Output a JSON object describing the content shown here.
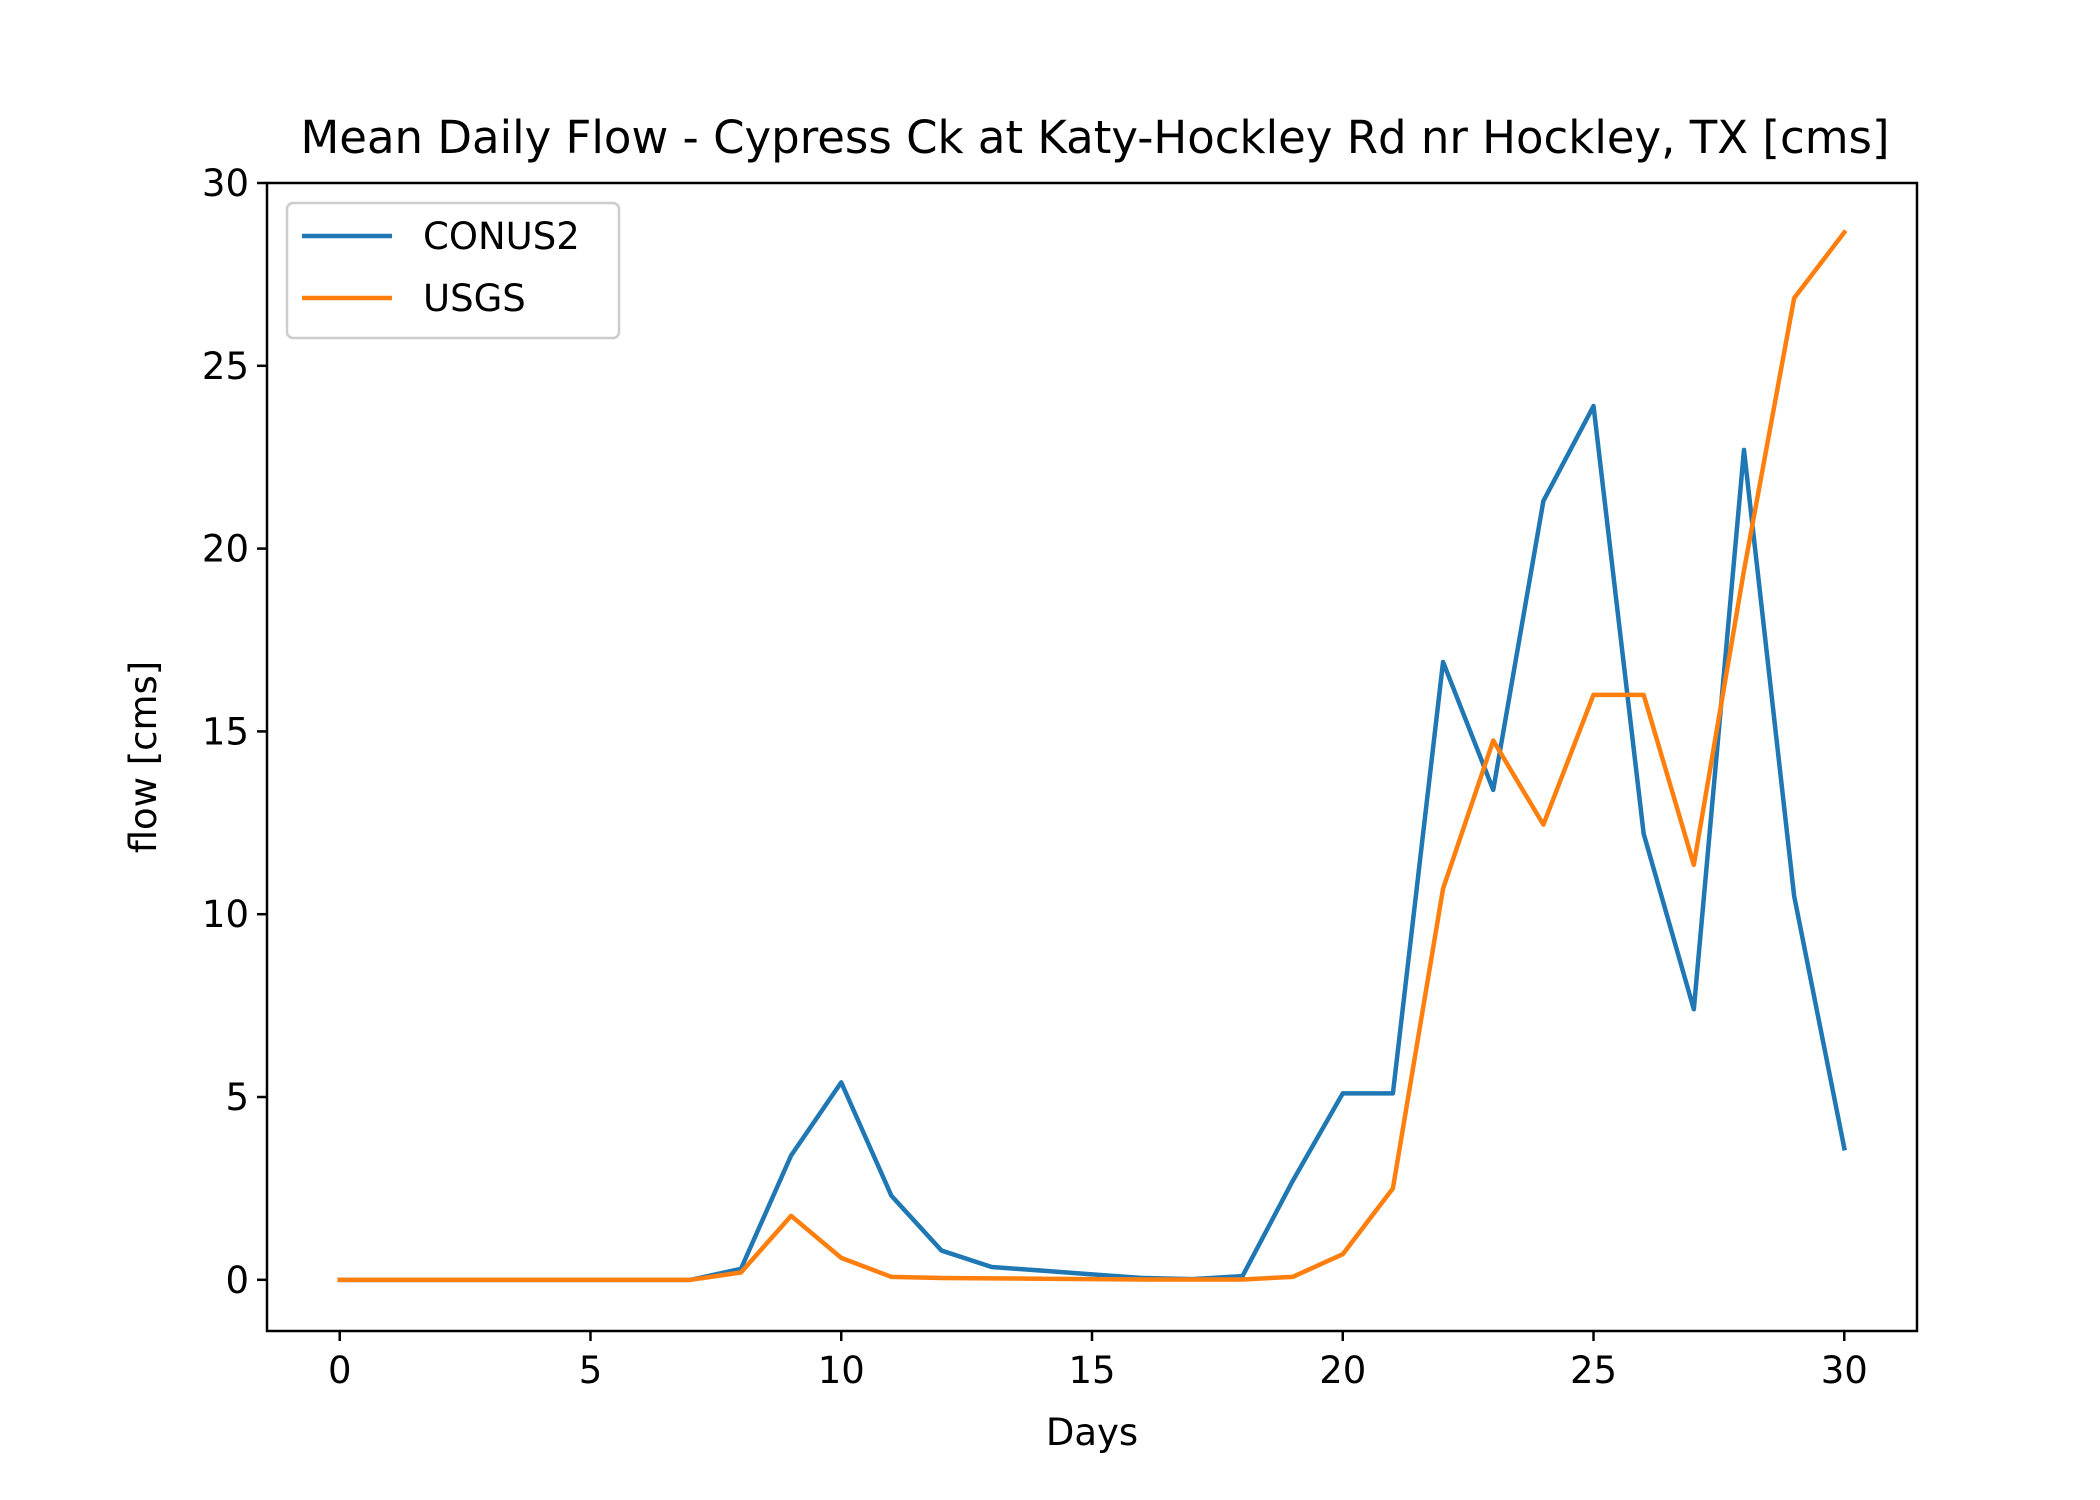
{
  "chart_data": {
    "type": "line",
    "title": "Mean Daily Flow - Cypress Ck at Katy-Hockley Rd nr Hockley, TX [cms]",
    "xlabel": "Days",
    "ylabel": "flow [cms]",
    "xlim": [
      -1.45,
      31.45
    ],
    "ylim": [
      -1.4,
      30
    ],
    "xticks": [
      0,
      5,
      10,
      15,
      20,
      25,
      30
    ],
    "yticks": [
      0,
      5,
      10,
      15,
      20,
      25,
      30
    ],
    "grid": false,
    "legend_position": "top-left",
    "x": [
      0,
      1,
      2,
      3,
      4,
      5,
      6,
      7,
      8,
      9,
      10,
      11,
      12,
      13,
      14,
      15,
      16,
      17,
      18,
      19,
      20,
      21,
      22,
      23,
      24,
      25,
      26,
      27,
      28,
      29,
      30
    ],
    "series": [
      {
        "name": "CONUS2",
        "color": "#1f77b4",
        "values": [
          0,
          0,
          0,
          0,
          0,
          0,
          0,
          0,
          0.3,
          3.4,
          5.4,
          2.3,
          0.8,
          0.35,
          0.25,
          0.15,
          0.05,
          0.02,
          0.1,
          2.7,
          5.1,
          5.1,
          16.9,
          13.4,
          21.3,
          23.9,
          12.2,
          7.4,
          22.7,
          10.5,
          3.6
        ]
      },
      {
        "name": "USGS",
        "color": "#ff7f0e",
        "values": [
          0,
          0,
          0,
          0,
          0,
          0,
          0,
          0,
          0.2,
          1.75,
          0.6,
          0.08,
          0.05,
          0.04,
          0.03,
          0.02,
          0.01,
          0.01,
          0.01,
          0.08,
          0.7,
          2.5,
          10.7,
          14.75,
          12.45,
          16.0,
          16.0,
          11.35,
          19.4,
          26.85,
          28.65
        ]
      }
    ]
  }
}
